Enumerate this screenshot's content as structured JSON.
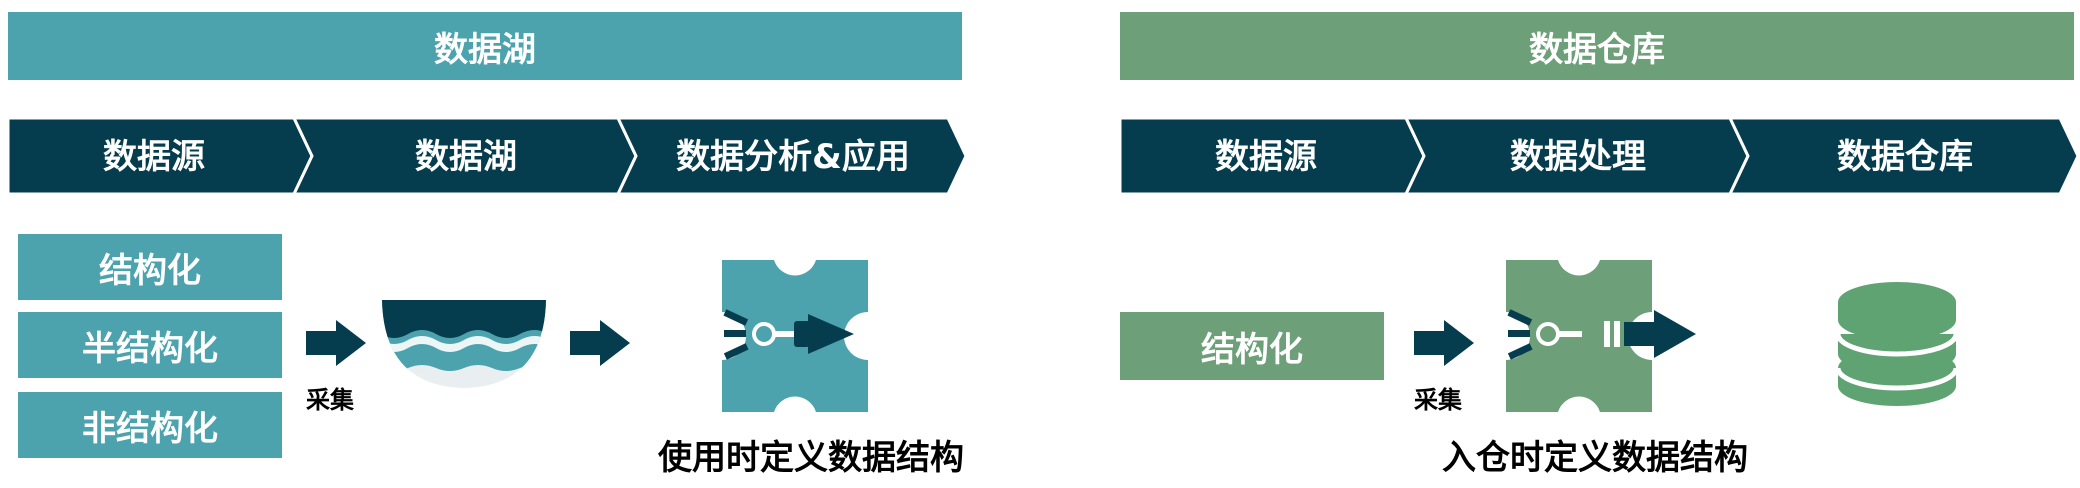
{
  "colors": {
    "lake_accent": "#4ca3ae",
    "warehouse_accent": "#6d9f78",
    "navy": "#063d4e",
    "db_green": "#5fa373"
  },
  "lake": {
    "banner": "数据湖",
    "steps": [
      "数据源",
      "数据湖",
      "数据分析&应用"
    ],
    "sources": [
      "结构化",
      "半结构化",
      "非结构化"
    ],
    "collect_label": "采集",
    "caption": "使用时定义数据结构",
    "icons": [
      "arrow-right-icon",
      "lake-bowl-icon",
      "arrow-right-icon",
      "puzzle-connector-icon"
    ]
  },
  "warehouse": {
    "banner": "数据仓库",
    "steps": [
      "数据源",
      "数据处理",
      "数据仓库"
    ],
    "sources": [
      "结构化"
    ],
    "collect_label": "采集",
    "caption": "入仓时定义数据结构",
    "icons": [
      "arrow-right-icon",
      "puzzle-connector-icon",
      "database-icon"
    ]
  }
}
